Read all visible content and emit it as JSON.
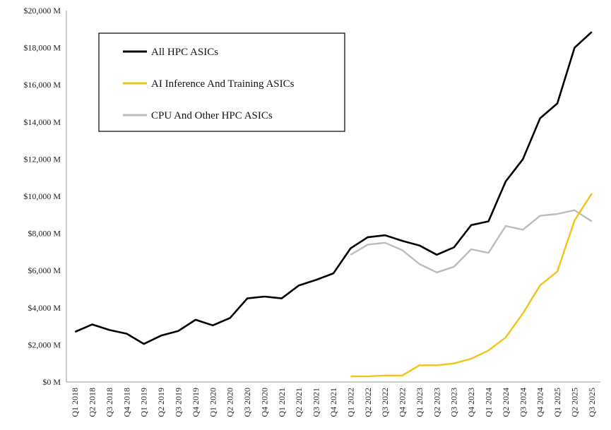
{
  "chart_data": {
    "type": "line",
    "title": "",
    "xlabel": "",
    "ylabel": "",
    "ylim": [
      0,
      20000
    ],
    "yticks": [
      {
        "value": 0,
        "label": "$0 M"
      },
      {
        "value": 2000,
        "label": "$2,000 M"
      },
      {
        "value": 4000,
        "label": "$4,000 M"
      },
      {
        "value": 6000,
        "label": "$6,000 M"
      },
      {
        "value": 8000,
        "label": "$8,000 M"
      },
      {
        "value": 10000,
        "label": "$10,000 M"
      },
      {
        "value": 12000,
        "label": "$12,000 M"
      },
      {
        "value": 14000,
        "label": "$14,000 M"
      },
      {
        "value": 16000,
        "label": "$16,000 M"
      },
      {
        "value": 18000,
        "label": "$18,000 M"
      },
      {
        "value": 20000,
        "label": "$20,000 M"
      }
    ],
    "grid": false,
    "legend_position": "top-left",
    "categories": [
      "Q1 2018",
      "Q2 2018",
      "Q3 2018",
      "Q4 2018",
      "Q1 2019",
      "Q2 2019",
      "Q3 2019",
      "Q4 2019",
      "Q1 2020",
      "Q2 2020",
      "Q3 2020",
      "Q4 2020",
      "Q1 2021",
      "Q2 2021",
      "Q3 2021",
      "Q4 2021",
      "Q1 2022",
      "Q2 2022",
      "Q3 2022",
      "Q4 2022",
      "Q1 2023",
      "Q2 2023",
      "Q3 2023",
      "Q4 2023",
      "Q1 2024",
      "Q2 2024",
      "Q3 2024",
      "Q4 2024",
      "Q1 2025",
      "Q2 2025",
      "Q3 2025"
    ],
    "series": [
      {
        "name": "All HPC ASICs",
        "color": "#000000",
        "values": [
          2700,
          3100,
          2800,
          2600,
          2050,
          2500,
          2750,
          3350,
          3050,
          3450,
          4500,
          4600,
          4500,
          5200,
          5500,
          5850,
          7200,
          7800,
          7900,
          7600,
          7350,
          6850,
          7250,
          8450,
          8650,
          10800,
          12000,
          14200,
          15000,
          18000,
          18850
        ]
      },
      {
        "name": "AI Inference And Training ASICs",
        "color": "#F2C417",
        "values": [
          null,
          null,
          null,
          null,
          null,
          null,
          null,
          null,
          null,
          null,
          null,
          null,
          null,
          null,
          null,
          null,
          300,
          300,
          350,
          350,
          900,
          900,
          1000,
          1250,
          1700,
          2400,
          3700,
          5200,
          5950,
          8700,
          10150
        ]
      },
      {
        "name": "CPU And Other HPC ASICs",
        "color": "#BDBDBD",
        "values": [
          null,
          null,
          null,
          null,
          null,
          null,
          null,
          null,
          null,
          null,
          null,
          null,
          null,
          null,
          null,
          null,
          6850,
          7400,
          7500,
          7100,
          6350,
          5900,
          6200,
          7150,
          6950,
          8400,
          8200,
          8950,
          9050,
          9250,
          8650
        ]
      }
    ]
  }
}
